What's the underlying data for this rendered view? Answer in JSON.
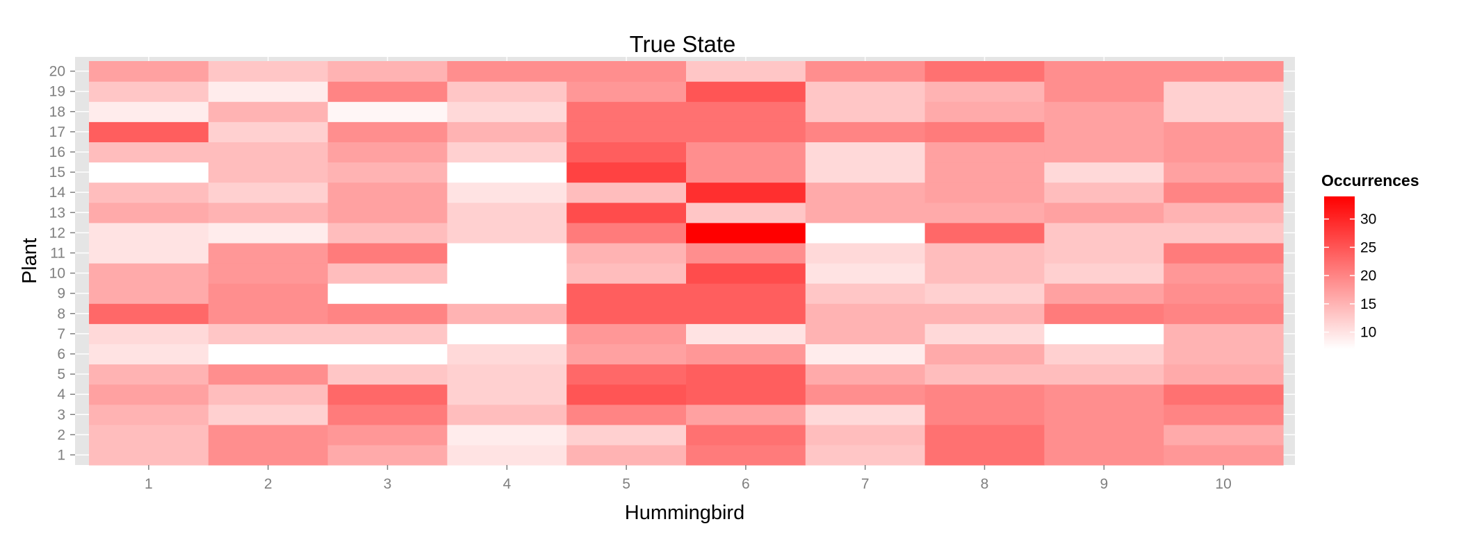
{
  "chart_data": {
    "type": "heatmap",
    "title": "True State",
    "xlabel": "Hummingbird",
    "ylabel": "Plant",
    "x_categories": [
      "1",
      "2",
      "3",
      "4",
      "5",
      "6",
      "7",
      "8",
      "9",
      "10"
    ],
    "y_categories": [
      "1",
      "2",
      "3",
      "4",
      "5",
      "6",
      "7",
      "8",
      "9",
      "10",
      "11",
      "12",
      "13",
      "14",
      "15",
      "16",
      "17",
      "18",
      "19",
      "20"
    ],
    "values": [
      [
        14,
        19,
        16,
        10,
        15,
        21,
        13,
        22,
        19,
        18
      ],
      [
        14,
        19,
        18,
        9,
        12,
        22,
        14,
        22,
        19,
        16
      ],
      [
        15,
        12,
        21,
        14,
        20,
        17,
        11,
        20,
        19,
        20
      ],
      [
        17,
        14,
        23,
        12,
        25,
        24,
        19,
        20,
        19,
        22
      ],
      [
        15,
        19,
        13,
        12,
        23,
        24,
        16,
        14,
        14,
        16
      ],
      [
        10,
        7,
        7,
        11,
        17,
        18,
        9,
        16,
        12,
        15
      ],
      [
        11,
        13,
        13,
        7,
        18,
        10,
        15,
        11,
        7,
        15
      ],
      [
        23,
        19,
        20,
        15,
        24,
        24,
        15,
        15,
        21,
        20
      ],
      [
        16,
        19,
        7,
        7,
        24,
        24,
        13,
        12,
        17,
        19
      ],
      [
        16,
        18,
        14,
        7,
        14,
        26,
        10,
        14,
        12,
        18
      ],
      [
        10,
        18,
        21,
        7,
        15,
        19,
        11,
        14,
        13,
        21
      ],
      [
        10,
        9,
        14,
        12,
        21,
        34,
        7,
        23,
        13,
        13
      ],
      [
        16,
        15,
        17,
        12,
        26,
        13,
        16,
        16,
        17,
        15
      ],
      [
        14,
        12,
        17,
        10,
        14,
        29,
        16,
        17,
        14,
        20
      ],
      [
        7,
        14,
        15,
        7,
        27,
        19,
        11,
        17,
        11,
        17
      ],
      [
        14,
        14,
        17,
        12,
        24,
        19,
        11,
        17,
        17,
        18
      ],
      [
        24,
        12,
        19,
        15,
        22,
        22,
        20,
        21,
        17,
        18
      ],
      [
        9,
        15,
        8,
        11,
        22,
        22,
        13,
        16,
        17,
        12
      ],
      [
        13,
        9,
        20,
        13,
        18,
        25,
        13,
        15,
        19,
        12
      ],
      [
        17,
        13,
        15,
        19,
        19,
        13,
        19,
        22,
        19,
        19
      ]
    ],
    "legend": {
      "title": "Occurrences",
      "ticks": [
        10,
        15,
        20,
        25,
        30
      ],
      "min": 7,
      "max": 34,
      "low_color": "#ffffff",
      "high_color": "#ff0000",
      "placement": "right"
    },
    "panel_background": "#e5e5e5",
    "grid": true
  }
}
